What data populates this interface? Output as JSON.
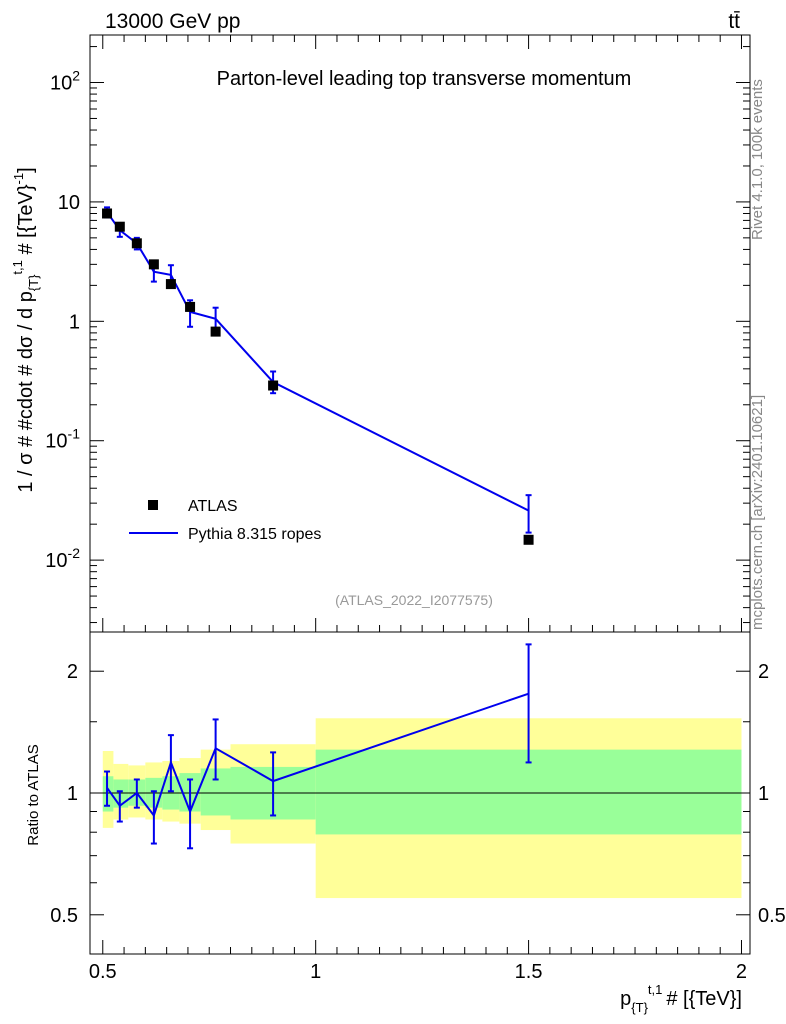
{
  "header": {
    "energy_label": "13000 GeV pp",
    "process_label": "tt̄"
  },
  "side": {
    "rivet_label": "Rivet 4.1.0,  100k events",
    "source_label": "mcplots.cern.ch [arXiv:2401.10621]"
  },
  "chart_data": [
    {
      "type": "scatter",
      "panel": "main",
      "title": "Parton-level leading top transverse momentum",
      "analysis_label": "(ATLAS_2022_I2077575)",
      "ylabel": "1 / σ # #cdot # dσ / d p_{T}^{t,1} # [{TeV}^{-1}]",
      "ylabel_parts": {
        "main": "1 / σ # #cdot # dσ / d p",
        "sub": "{T}",
        "sup": "t,1",
        "tail": " # [{TeV}",
        "tail_sup": "-1",
        "close": "]"
      },
      "yscale": "log",
      "ylim": [
        0.0025,
        250
      ],
      "xlim": [
        0.47,
        2.02
      ],
      "yticks": [
        {
          "value": 0.01,
          "base": "10",
          "exp": "-2"
        },
        {
          "value": 0.1,
          "base": "10",
          "exp": "-1"
        },
        {
          "value": 1,
          "base": "1",
          "exp": ""
        },
        {
          "value": 10,
          "base": "10",
          "exp": ""
        },
        {
          "value": 100,
          "base": "10",
          "exp": "2"
        }
      ],
      "legend_position": "lower-left",
      "series": [
        {
          "name": "ATLAS",
          "style": "marker",
          "color": "#000000",
          "x": [
            0.51,
            0.54,
            0.58,
            0.62,
            0.66,
            0.705,
            0.765,
            0.9,
            1.5
          ],
          "y": [
            8.0,
            6.2,
            4.5,
            3.0,
            2.05,
            1.32,
            0.82,
            0.29,
            0.0148
          ]
        },
        {
          "name": "Pythia 8.315 ropes",
          "style": "line",
          "color": "#0000ee",
          "x": [
            0.51,
            0.54,
            0.58,
            0.62,
            0.66,
            0.705,
            0.765,
            0.9,
            1.5
          ],
          "y": [
            8.2,
            5.8,
            4.5,
            2.6,
            2.45,
            1.2,
            1.05,
            0.31,
            0.026
          ],
          "y_err_low": [
            0.8,
            0.7,
            0.5,
            0.45,
            0.45,
            0.3,
            0.25,
            0.06,
            0.009
          ],
          "y_err_high": [
            0.8,
            0.7,
            0.5,
            0.45,
            0.5,
            0.3,
            0.25,
            0.07,
            0.009
          ]
        }
      ]
    },
    {
      "type": "line",
      "panel": "ratio",
      "ylabel": "Ratio to ATLAS",
      "yscale": "log",
      "ylim": [
        0.4,
        2.5
      ],
      "xlim": [
        0.47,
        2.02
      ],
      "yticks": [
        {
          "value": 0.5,
          "label": "0.5"
        },
        {
          "value": 1,
          "label": "1"
        },
        {
          "value": 2,
          "label": "2"
        }
      ],
      "xticks": [
        {
          "value": 0.5,
          "label": "0.5"
        },
        {
          "value": 1,
          "label": "1"
        },
        {
          "value": 1.5,
          "label": "1.5"
        },
        {
          "value": 2,
          "label": "2"
        }
      ],
      "xlabel_parts": {
        "main": "p",
        "sub": "{T}",
        "sup": "t,1",
        "tail": "# [{TeV}]"
      },
      "bands": {
        "edges": [
          0.5,
          0.525,
          0.56,
          0.6,
          0.64,
          0.68,
          0.73,
          0.8,
          1.0,
          2.0
        ],
        "outer_low": [
          0.82,
          0.86,
          0.87,
          0.86,
          0.85,
          0.84,
          0.81,
          0.75,
          0.55
        ],
        "outer_high": [
          1.27,
          1.18,
          1.17,
          1.19,
          1.2,
          1.22,
          1.28,
          1.32,
          1.53
        ],
        "inner_low": [
          0.9,
          0.92,
          0.93,
          0.92,
          0.91,
          0.9,
          0.88,
          0.86,
          0.79
        ],
        "inner_high": [
          1.1,
          1.08,
          1.08,
          1.09,
          1.1,
          1.12,
          1.15,
          1.16,
          1.28
        ],
        "outer_color": "#ffff99",
        "inner_color": "#99ff99"
      },
      "series": [
        {
          "name": "Pythia 8.315 ropes / ATLAS",
          "color": "#0000ee",
          "x": [
            0.51,
            0.54,
            0.58,
            0.62,
            0.66,
            0.705,
            0.765,
            0.9,
            1.5
          ],
          "y": [
            1.03,
            0.93,
            1.0,
            0.88,
            1.19,
            0.9,
            1.29,
            1.07,
            1.76
          ],
          "y_err_low": [
            0.1,
            0.08,
            0.08,
            0.13,
            0.18,
            0.17,
            0.21,
            0.19,
            0.57
          ],
          "y_err_high": [
            0.1,
            0.08,
            0.08,
            0.13,
            0.2,
            0.18,
            0.23,
            0.19,
            0.57
          ]
        }
      ]
    }
  ]
}
